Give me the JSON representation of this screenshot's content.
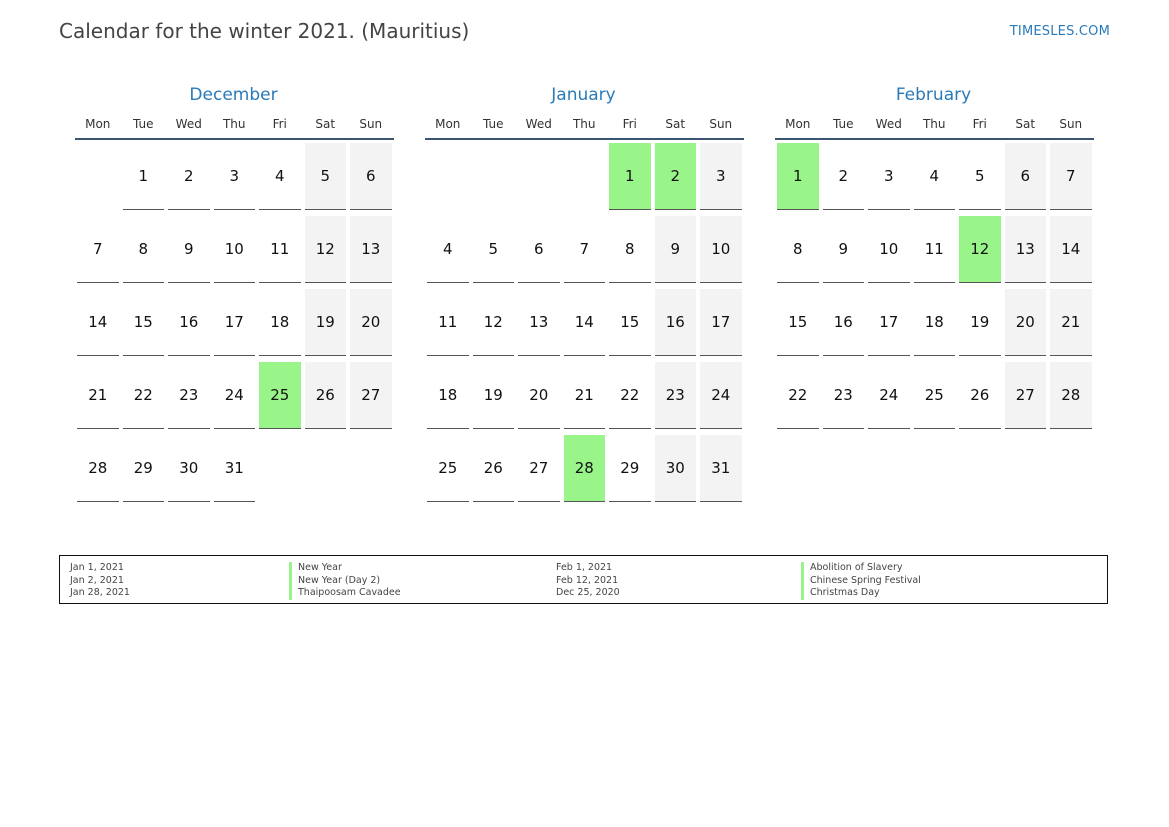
{
  "header": {
    "title": "Calendar for the winter 2021. (Mauritius)",
    "site": "TIMESLES.COM"
  },
  "colors": {
    "accent": "#2a7ab8",
    "holiday": "#99f58a",
    "weekend": "#f3f3f3"
  },
  "weekdays": [
    "Mon",
    "Tue",
    "Wed",
    "Thu",
    "Fri",
    "Sat",
    "Sun"
  ],
  "months": [
    {
      "name": "December",
      "start_offset": 1,
      "days": 31,
      "holidays": [
        25
      ]
    },
    {
      "name": "January",
      "start_offset": 4,
      "days": 31,
      "holidays": [
        1,
        2,
        28
      ]
    },
    {
      "name": "February",
      "start_offset": 0,
      "days": 28,
      "holidays": [
        1,
        12
      ]
    }
  ],
  "legend": {
    "left": {
      "dates": [
        "Jan 1, 2021",
        "Jan 2, 2021",
        "Jan 28, 2021"
      ],
      "names": [
        "New Year",
        "New Year (Day 2)",
        "Thaipoosam Cavadee"
      ]
    },
    "right": {
      "dates": [
        "Feb 1, 2021",
        "Feb 12, 2021",
        "Dec 25, 2020"
      ],
      "names": [
        "Abolition of Slavery",
        "Chinese Spring Festival",
        "Christmas Day"
      ]
    }
  }
}
